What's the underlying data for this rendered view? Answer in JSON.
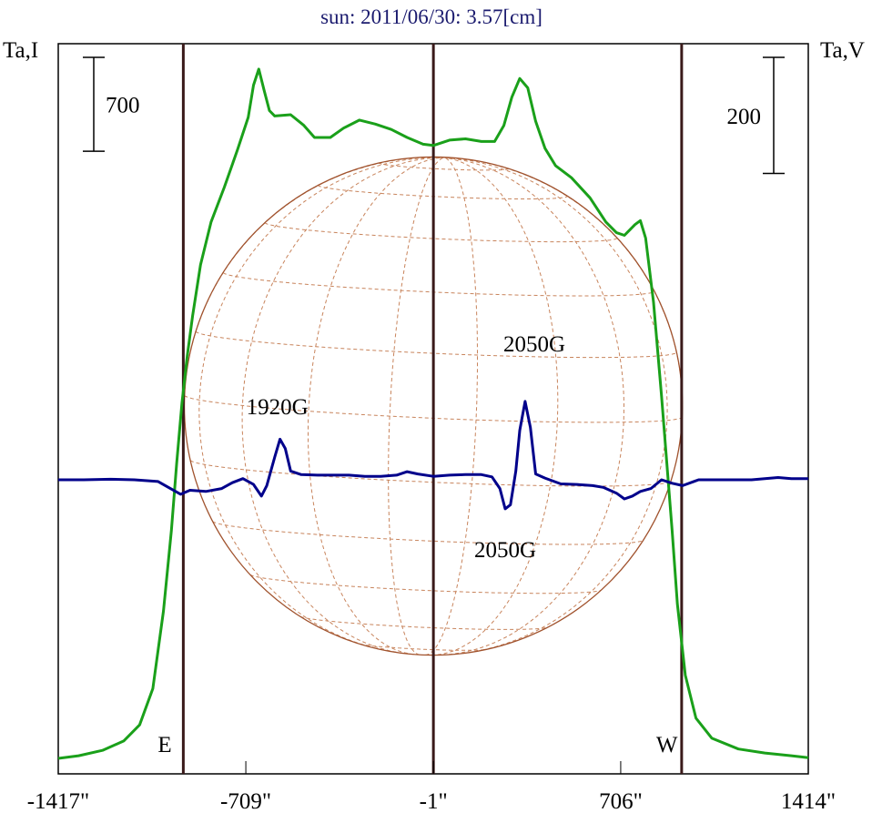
{
  "chart_data": {
    "type": "line",
    "title": "sun: 2011/06/30: 3.57[cm]",
    "xlabel": "",
    "ylabel_left": "Ta,I",
    "ylabel_right": "Ta,V",
    "x_unit": "arcsec",
    "xlim": [
      -1417,
      1414
    ],
    "x_ticks": [
      {
        "value": -1417,
        "label": "-1417\""
      },
      {
        "value": -709,
        "label": "-709\""
      },
      {
        "value": -1,
        "label": "-1\""
      },
      {
        "value": 706,
        "label": "706\""
      },
      {
        "value": 1414,
        "label": "1414\""
      }
    ],
    "limb_markers": [
      {
        "x": -945,
        "label": "E"
      },
      {
        "x": -1,
        "label": ""
      },
      {
        "x": 936,
        "label": "W"
      }
    ],
    "scale_bars": {
      "left": {
        "label": "700",
        "value": 700
      },
      "right": {
        "label": "200",
        "value": 200
      }
    },
    "annotations": [
      {
        "text": "1920G",
        "x": -590
      },
      {
        "text": "2050G",
        "x": 380
      },
      {
        "text": "2050G",
        "x": 270
      }
    ],
    "grid": false,
    "series": [
      {
        "axis": "left",
        "color": "#1aa01a",
        "points": [
          [
            -1417,
            0
          ],
          [
            -1340,
            20
          ],
          [
            -1250,
            60
          ],
          [
            -1170,
            130
          ],
          [
            -1110,
            250
          ],
          [
            -1060,
            520
          ],
          [
            -1020,
            1100
          ],
          [
            -990,
            1700
          ],
          [
            -970,
            2200
          ],
          [
            -950,
            2650
          ],
          [
            -930,
            3000
          ],
          [
            -910,
            3300
          ],
          [
            -880,
            3680
          ],
          [
            -840,
            4000
          ],
          [
            -790,
            4260
          ],
          [
            -740,
            4540
          ],
          [
            -700,
            4780
          ],
          [
            -680,
            5020
          ],
          [
            -660,
            5140
          ],
          [
            -640,
            4980
          ],
          [
            -620,
            4830
          ],
          [
            -600,
            4790
          ],
          [
            -540,
            4800
          ],
          [
            -490,
            4720
          ],
          [
            -450,
            4630
          ],
          [
            -390,
            4630
          ],
          [
            -340,
            4700
          ],
          [
            -280,
            4760
          ],
          [
            -220,
            4730
          ],
          [
            -160,
            4690
          ],
          [
            -100,
            4630
          ],
          [
            -40,
            4580
          ],
          [
            -1,
            4570
          ],
          [
            60,
            4610
          ],
          [
            120,
            4620
          ],
          [
            180,
            4600
          ],
          [
            230,
            4600
          ],
          [
            265,
            4720
          ],
          [
            295,
            4930
          ],
          [
            325,
            5070
          ],
          [
            355,
            5000
          ],
          [
            385,
            4750
          ],
          [
            420,
            4550
          ],
          [
            460,
            4420
          ],
          [
            520,
            4330
          ],
          [
            590,
            4180
          ],
          [
            650,
            4000
          ],
          [
            690,
            3920
          ],
          [
            720,
            3900
          ],
          [
            760,
            3980
          ],
          [
            780,
            4010
          ],
          [
            800,
            3880
          ],
          [
            830,
            3400
          ],
          [
            860,
            2700
          ],
          [
            880,
            2200
          ],
          [
            900,
            1700
          ],
          [
            920,
            1150
          ],
          [
            950,
            620
          ],
          [
            990,
            300
          ],
          [
            1050,
            150
          ],
          [
            1150,
            70
          ],
          [
            1250,
            40
          ],
          [
            1350,
            20
          ],
          [
            1414,
            5
          ]
        ]
      },
      {
        "axis": "right",
        "color": "#00008b",
        "points": [
          [
            -1417,
            0
          ],
          [
            -1320,
            0
          ],
          [
            -1220,
            1
          ],
          [
            -1130,
            0
          ],
          [
            -1040,
            -3
          ],
          [
            -990,
            -16
          ],
          [
            -955,
            -25
          ],
          [
            -920,
            -18
          ],
          [
            -860,
            -20
          ],
          [
            -800,
            -15
          ],
          [
            -760,
            -5
          ],
          [
            -720,
            2
          ],
          [
            -680,
            -8
          ],
          [
            -650,
            -28
          ],
          [
            -630,
            -10
          ],
          [
            -600,
            39
          ],
          [
            -580,
            70
          ],
          [
            -560,
            54
          ],
          [
            -540,
            15
          ],
          [
            -500,
            9
          ],
          [
            -440,
            8
          ],
          [
            -380,
            8
          ],
          [
            -320,
            8
          ],
          [
            -260,
            6
          ],
          [
            -200,
            6
          ],
          [
            -140,
            8
          ],
          [
            -100,
            14
          ],
          [
            -60,
            10
          ],
          [
            -1,
            6
          ],
          [
            60,
            8
          ],
          [
            120,
            9
          ],
          [
            180,
            9
          ],
          [
            220,
            5
          ],
          [
            250,
            -15
          ],
          [
            270,
            -50
          ],
          [
            290,
            -43
          ],
          [
            310,
            15
          ],
          [
            325,
            85
          ],
          [
            345,
            135
          ],
          [
            365,
            90
          ],
          [
            385,
            10
          ],
          [
            420,
            3
          ],
          [
            480,
            -7
          ],
          [
            540,
            -8
          ],
          [
            600,
            -10
          ],
          [
            640,
            -13
          ],
          [
            690,
            -23
          ],
          [
            720,
            -33
          ],
          [
            750,
            -28
          ],
          [
            780,
            -20
          ],
          [
            820,
            -15
          ],
          [
            860,
            0
          ],
          [
            900,
            -6
          ],
          [
            940,
            -10
          ],
          [
            1000,
            0
          ],
          [
            1100,
            0
          ],
          [
            1200,
            0
          ],
          [
            1300,
            4
          ],
          [
            1350,
            2
          ],
          [
            1414,
            2
          ]
        ]
      }
    ],
    "sun_disk": {
      "center_x": -1,
      "radius_arcsec": 940,
      "edge_color": "#a0522d",
      "grid_color": "#c8845c",
      "p_angle_deg": -2.5,
      "b0_deg": 2.8,
      "meridian_step_deg": 20,
      "parallel_step_deg": 15
    },
    "colors": {
      "frame": "#000000",
      "marker_lines": "#3a1a1a",
      "title": "#1a1a6e",
      "tick_labels": "#000000"
    }
  }
}
